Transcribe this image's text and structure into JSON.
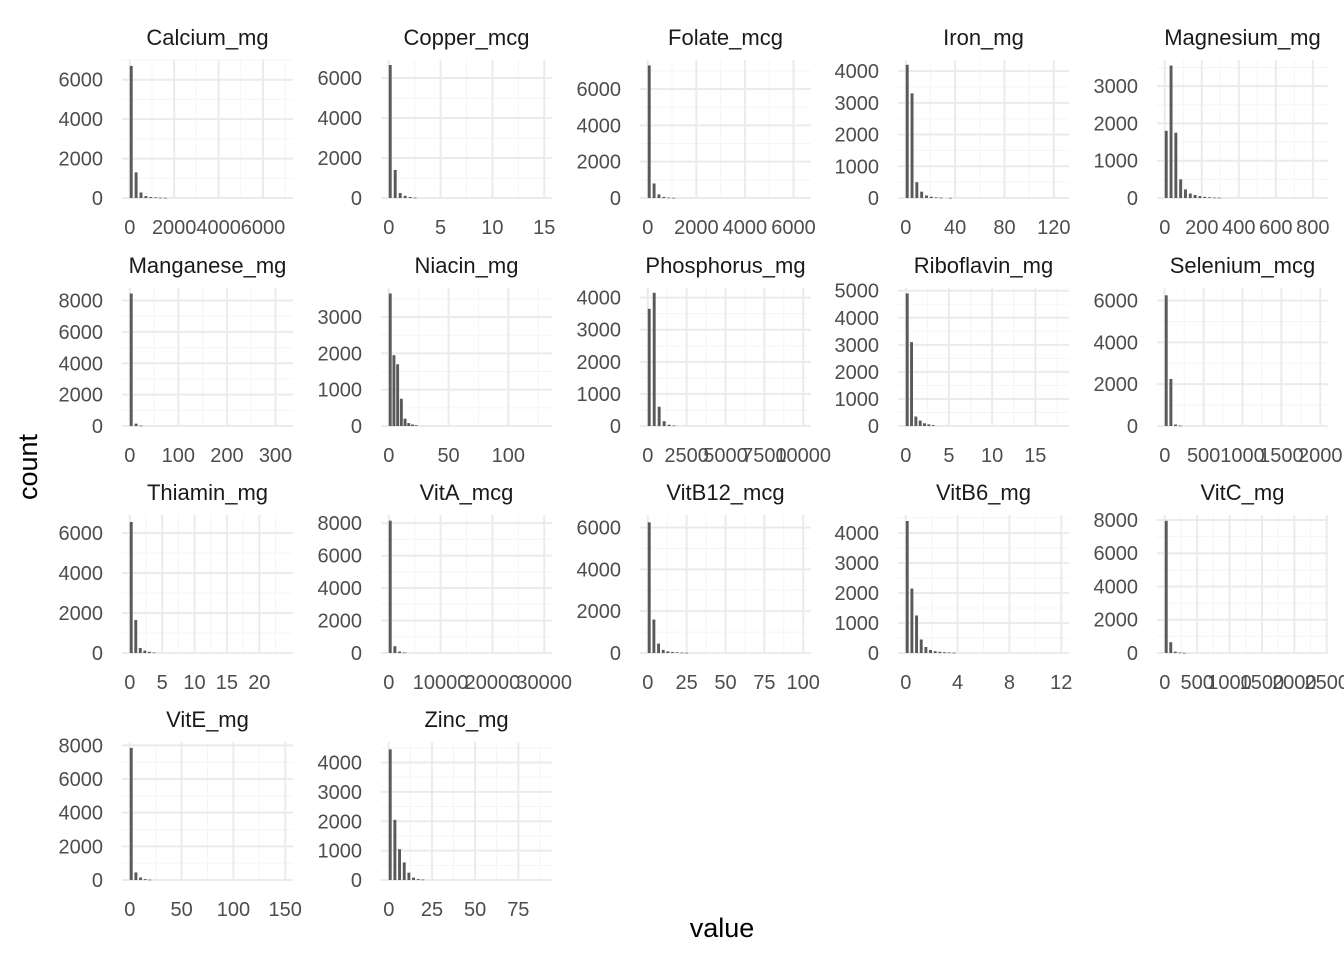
{
  "axis_titles": {
    "x": "value",
    "y": "count"
  },
  "colors": {
    "bar": "#595959",
    "grid_major": "#ebebeb",
    "grid_minor": "#f5f5f5",
    "background": "#ffffff"
  },
  "chart_data": {
    "type": "histogram-facets",
    "xlabel": "value",
    "ylabel": "count",
    "grid": true,
    "scales": "free",
    "panels": [
      {
        "title": "Calcium_mg",
        "xlim": [
          -350,
          7350
        ],
        "ylim": [
          0,
          7000
        ],
        "xticks": [
          0,
          2000,
          4000,
          6000
        ],
        "xtick_labels": [
          "0",
          "2000",
          "4000",
          "6000"
        ],
        "yticks": [
          0,
          2000,
          4000,
          6000
        ],
        "ytick_labels": [
          "0",
          "2000",
          "4000",
          "6000"
        ],
        "bars": [
          [
            0,
            6700
          ],
          [
            220,
            1300
          ],
          [
            440,
            280
          ],
          [
            660,
            100
          ],
          [
            880,
            50
          ],
          [
            1100,
            30
          ],
          [
            1320,
            15
          ],
          [
            1540,
            8
          ]
        ]
      },
      {
        "title": "Copper_mcg",
        "xlim": [
          -0.75,
          15.75
        ],
        "ylim": [
          0,
          6900
        ],
        "xticks": [
          0,
          5,
          10,
          15
        ],
        "xtick_labels": [
          "0",
          "5",
          "10",
          "15"
        ],
        "yticks": [
          0,
          2000,
          4000,
          6000
        ],
        "ytick_labels": [
          "0",
          "2000",
          "4000",
          "6000"
        ],
        "bars": [
          [
            0,
            6650
          ],
          [
            0.48,
            1400
          ],
          [
            0.96,
            250
          ],
          [
            1.44,
            110
          ],
          [
            1.92,
            50
          ],
          [
            2.4,
            15
          ]
        ]
      },
      {
        "title": "Folate_mcg",
        "xlim": [
          -320,
          6720
        ],
        "ylim": [
          0,
          7600
        ],
        "xticks": [
          0,
          2000,
          4000,
          6000
        ],
        "xtick_labels": [
          "0",
          "2000",
          "4000",
          "6000"
        ],
        "yticks": [
          0,
          2000,
          4000,
          6000
        ],
        "ytick_labels": [
          "0",
          "2000",
          "4000",
          "6000"
        ],
        "bars": [
          [
            0,
            7300
          ],
          [
            200,
            800
          ],
          [
            400,
            200
          ],
          [
            600,
            60
          ],
          [
            800,
            20
          ],
          [
            1000,
            10
          ]
        ]
      },
      {
        "title": "Iron_mg",
        "xlim": [
          -6.3,
          132.3
        ],
        "ylim": [
          0,
          4350
        ],
        "xticks": [
          0,
          40,
          80,
          120
        ],
        "xtick_labels": [
          "0",
          "40",
          "80",
          "120"
        ],
        "yticks": [
          0,
          1000,
          2000,
          3000,
          4000
        ],
        "ytick_labels": [
          "0",
          "1000",
          "2000",
          "3000",
          "4000"
        ],
        "bars": [
          [
            0,
            4200
          ],
          [
            3.9,
            3300
          ],
          [
            7.8,
            500
          ],
          [
            11.7,
            200
          ],
          [
            15.6,
            80
          ],
          [
            19.5,
            40
          ],
          [
            23.4,
            20
          ],
          [
            27.3,
            10
          ],
          [
            35.1,
            5
          ]
        ]
      },
      {
        "title": "Magnesium_mg",
        "xlim": [
          -42,
          882
        ],
        "ylim": [
          0,
          3700
        ],
        "xticks": [
          0,
          200,
          400,
          600,
          800
        ],
        "xtick_labels": [
          "0",
          "200",
          "400",
          "600",
          "800"
        ],
        "yticks": [
          0,
          1000,
          2000,
          3000
        ],
        "ytick_labels": [
          "0",
          "1000",
          "2000",
          "3000"
        ],
        "bars": [
          [
            0,
            1800
          ],
          [
            26,
            3550
          ],
          [
            52,
            1750
          ],
          [
            78,
            500
          ],
          [
            104,
            230
          ],
          [
            130,
            120
          ],
          [
            156,
            80
          ],
          [
            182,
            50
          ],
          [
            208,
            30
          ],
          [
            234,
            20
          ],
          [
            260,
            12
          ],
          [
            286,
            8
          ]
        ]
      },
      {
        "title": "Manganese_mg",
        "xlim": [
          -16,
          336
        ],
        "ylim": [
          0,
          8800
        ],
        "xticks": [
          0,
          100,
          200,
          300
        ],
        "xtick_labels": [
          "0",
          "100",
          "200",
          "300"
        ],
        "yticks": [
          0,
          2000,
          4000,
          6000,
          8000
        ],
        "ytick_labels": [
          "0",
          "2000",
          "4000",
          "6000",
          "8000"
        ],
        "bars": [
          [
            0,
            8450
          ],
          [
            10,
            150
          ],
          [
            20,
            20
          ]
        ]
      },
      {
        "title": "Niacin_mg",
        "xlim": [
          -6.5,
          136.5
        ],
        "ylim": [
          0,
          3800
        ],
        "xticks": [
          0,
          50,
          100
        ],
        "xtick_labels": [
          "0",
          "50",
          "100"
        ],
        "yticks": [
          0,
          1000,
          2000,
          3000
        ],
        "ytick_labels": [
          "0",
          "1000",
          "2000",
          "3000"
        ],
        "bars": [
          [
            0,
            3650
          ],
          [
            3.1,
            1950
          ],
          [
            6.2,
            1700
          ],
          [
            9.3,
            750
          ],
          [
            12.4,
            200
          ],
          [
            15.5,
            80
          ],
          [
            18.6,
            40
          ],
          [
            21.7,
            20
          ]
        ]
      },
      {
        "title": "Phosphorus_mg",
        "xlim": [
          -500,
          10500
        ],
        "ylim": [
          0,
          4300
        ],
        "xticks": [
          0,
          2500,
          5000,
          7500,
          10000
        ],
        "xtick_labels": [
          "0",
          "2500",
          "5000",
          "7500",
          "10000"
        ],
        "yticks": [
          0,
          1000,
          2000,
          3000,
          4000
        ],
        "ytick_labels": [
          "0",
          "1000",
          "2000",
          "3000",
          "4000"
        ],
        "bars": [
          [
            0,
            3650
          ],
          [
            320,
            4150
          ],
          [
            640,
            600
          ],
          [
            960,
            150
          ],
          [
            1280,
            40
          ],
          [
            1600,
            15
          ]
        ]
      },
      {
        "title": "Riboflavin_mg",
        "xlim": [
          -0.9,
          18.9
        ],
        "ylim": [
          0,
          5100
        ],
        "xticks": [
          0,
          5,
          10,
          15
        ],
        "xtick_labels": [
          "0",
          "5",
          "10",
          "15"
        ],
        "yticks": [
          0,
          1000,
          2000,
          3000,
          4000,
          5000
        ],
        "ytick_labels": [
          "0",
          "1000",
          "2000",
          "3000",
          "4000",
          "5000"
        ],
        "bars": [
          [
            0,
            4900
          ],
          [
            0.5,
            3100
          ],
          [
            1.0,
            350
          ],
          [
            1.5,
            200
          ],
          [
            2.0,
            100
          ],
          [
            2.5,
            60
          ],
          [
            3.0,
            30
          ]
        ]
      },
      {
        "title": "Selenium_mcg",
        "xlim": [
          -100,
          2100
        ],
        "ylim": [
          0,
          6600
        ],
        "xticks": [
          0,
          500,
          1000,
          1500,
          2000
        ],
        "xtick_labels": [
          "0",
          "500",
          "1000",
          "1500",
          "2000"
        ],
        "yticks": [
          0,
          2000,
          4000,
          6000
        ],
        "ytick_labels": [
          "0",
          "2000",
          "4000",
          "6000"
        ],
        "bars": [
          [
            0,
            6250
          ],
          [
            60,
            2250
          ],
          [
            120,
            70
          ],
          [
            180,
            20
          ]
        ]
      },
      {
        "title": "Thiamin_mg",
        "xlim": [
          -1.2,
          25.2
        ],
        "ylim": [
          0,
          6900
        ],
        "xticks": [
          0,
          5,
          10,
          15,
          20
        ],
        "xtick_labels": [
          "0",
          "5",
          "10",
          "15",
          "20"
        ],
        "yticks": [
          0,
          2000,
          4000,
          6000
        ],
        "ytick_labels": [
          "0",
          "2000",
          "4000",
          "6000"
        ],
        "bars": [
          [
            0,
            6550
          ],
          [
            0.7,
            1650
          ],
          [
            1.4,
            250
          ],
          [
            2.1,
            120
          ],
          [
            2.8,
            60
          ],
          [
            3.5,
            25
          ]
        ]
      },
      {
        "title": "VitA_mcg",
        "xlim": [
          -1500,
          31500
        ],
        "ylim": [
          0,
          8500
        ],
        "xticks": [
          0,
          10000,
          20000,
          30000
        ],
        "xtick_labels": [
          "0",
          "10000",
          "20000",
          "30000"
        ],
        "yticks": [
          0,
          2000,
          4000,
          6000,
          8000
        ],
        "ytick_labels": [
          "0",
          "2000",
          "4000",
          "6000",
          "8000"
        ],
        "bars": [
          [
            0,
            8150
          ],
          [
            900,
            420
          ],
          [
            1800,
            90
          ],
          [
            2700,
            30
          ]
        ]
      },
      {
        "title": "VitB12_mcg",
        "xlim": [
          -5,
          105
        ],
        "ylim": [
          0,
          6600
        ],
        "xticks": [
          0,
          25,
          50,
          75,
          100
        ],
        "xtick_labels": [
          "0",
          "25",
          "50",
          "75",
          "100"
        ],
        "yticks": [
          0,
          2000,
          4000,
          6000
        ],
        "ytick_labels": [
          "0",
          "2000",
          "4000",
          "6000"
        ],
        "bars": [
          [
            0,
            6250
          ],
          [
            3,
            1600
          ],
          [
            6,
            450
          ],
          [
            9,
            150
          ],
          [
            12,
            80
          ],
          [
            15,
            50
          ],
          [
            18,
            30
          ],
          [
            21,
            20
          ],
          [
            24,
            10
          ]
        ]
      },
      {
        "title": "VitB6_mg",
        "xlim": [
          -0.6,
          12.6
        ],
        "ylim": [
          0,
          4600
        ],
        "xticks": [
          0,
          4,
          8,
          12
        ],
        "xtick_labels": [
          "0",
          "4",
          "8",
          "12"
        ],
        "yticks": [
          0,
          1000,
          2000,
          3000,
          4000
        ],
        "ytick_labels": [
          "0",
          "1000",
          "2000",
          "3000",
          "4000"
        ],
        "bars": [
          [
            0,
            4400
          ],
          [
            0.36,
            2150
          ],
          [
            0.72,
            1250
          ],
          [
            1.08,
            450
          ],
          [
            1.44,
            200
          ],
          [
            1.8,
            100
          ],
          [
            2.16,
            60
          ],
          [
            2.52,
            40
          ],
          [
            2.88,
            25
          ],
          [
            3.24,
            15
          ],
          [
            3.6,
            10
          ]
        ]
      },
      {
        "title": "VitC_mg",
        "xlim": [
          -120,
          2520
        ],
        "ylim": [
          0,
          8300
        ],
        "xticks": [
          0,
          500,
          1000,
          1500,
          2000,
          2500
        ],
        "xtick_labels": [
          "0",
          "500",
          "1000",
          "1500",
          "2000",
          "2500"
        ],
        "yticks": [
          0,
          2000,
          4000,
          6000,
          8000
        ],
        "ytick_labels": [
          "0",
          "2000",
          "4000",
          "6000",
          "8000"
        ],
        "bars": [
          [
            0,
            7950
          ],
          [
            70,
            650
          ],
          [
            140,
            80
          ],
          [
            210,
            30
          ],
          [
            280,
            10
          ]
        ]
      },
      {
        "title": "VitE_mg",
        "xlim": [
          -7.5,
          157.5
        ],
        "ylim": [
          0,
          8200
        ],
        "xticks": [
          0,
          50,
          100,
          150
        ],
        "xtick_labels": [
          "0",
          "50",
          "100",
          "150"
        ],
        "yticks": [
          0,
          2000,
          4000,
          6000,
          8000
        ],
        "ytick_labels": [
          "0",
          "2000",
          "4000",
          "6000",
          "8000"
        ],
        "bars": [
          [
            0,
            7850
          ],
          [
            4.5,
            450
          ],
          [
            9,
            150
          ],
          [
            13.5,
            50
          ],
          [
            18,
            20
          ]
        ]
      },
      {
        "title": "Zinc_mg",
        "xlim": [
          -4.5,
          94.5
        ],
        "ylim": [
          0,
          4700
        ],
        "xticks": [
          0,
          25,
          50,
          75
        ],
        "xtick_labels": [
          "0",
          "25",
          "50",
          "75"
        ],
        "yticks": [
          0,
          1000,
          2000,
          3000,
          4000
        ],
        "ytick_labels": [
          "0",
          "1000",
          "2000",
          "3000",
          "4000"
        ],
        "bars": [
          [
            0,
            4450
          ],
          [
            2.7,
            2050
          ],
          [
            5.4,
            1050
          ],
          [
            8.1,
            600
          ],
          [
            10.8,
            250
          ],
          [
            13.5,
            80
          ],
          [
            16.2,
            30
          ],
          [
            18.9,
            15
          ]
        ]
      }
    ]
  }
}
